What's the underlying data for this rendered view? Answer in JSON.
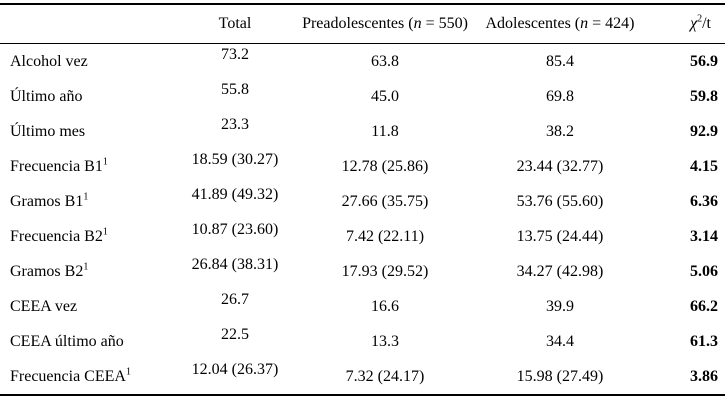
{
  "table": {
    "header": {
      "total": "Total",
      "pre_prefix": "Preadolescentes (",
      "pre_n": "n",
      "pre_suffix": " = 550)",
      "ado_prefix": "Adolescentes (",
      "ado_n": "n",
      "ado_suffix": " = 424)",
      "stat_chi": "χ",
      "stat_sup": "2",
      "stat_suffix": "/t"
    },
    "rows": [
      {
        "label": "Alcohol vez",
        "sup": "",
        "total": "73.2",
        "pre": "63.8",
        "ado": "85.4",
        "stat": "56.9"
      },
      {
        "label": "Último año",
        "sup": "",
        "total": "55.8",
        "pre": "45.0",
        "ado": "69.8",
        "stat": "59.8"
      },
      {
        "label": "Último mes",
        "sup": "",
        "total": "23.3",
        "pre": "11.8",
        "ado": "38.2",
        "stat": "92.9"
      },
      {
        "label": "Frecuencia B1",
        "sup": "1",
        "total": "18.59 (30.27)",
        "pre": "12.78 (25.86)",
        "ado": "23.44 (32.77)",
        "stat": "4.15"
      },
      {
        "label": "Gramos B1",
        "sup": "1",
        "total": "41.89 (49.32)",
        "pre": "27.66 (35.75)",
        "ado": "53.76 (55.60)",
        "stat": "6.36"
      },
      {
        "label": "Frecuencia B2",
        "sup": "1",
        "total": "10.87 (23.60)",
        "pre": "7.42 (22.11)",
        "ado": "13.75 (24.44)",
        "stat": "3.14"
      },
      {
        "label": "Gramos B2",
        "sup": "1",
        "total": "26.84 (38.31)",
        "pre": "17.93 (29.52)",
        "ado": "34.27 (42.98)",
        "stat": "5.06"
      },
      {
        "label": "CEEA vez",
        "sup": "",
        "total": "26.7",
        "pre": "16.6",
        "ado": "39.9",
        "stat": "66.2"
      },
      {
        "label": "CEEA último año",
        "sup": "",
        "total": "22.5",
        "pre": "13.3",
        "ado": "34.4",
        "stat": "61.3"
      },
      {
        "label": "Frecuencia CEEA",
        "sup": "1",
        "total": "12.04 (26.37)",
        "pre": "7.32 (24.17)",
        "ado": "15.98 (27.49)",
        "stat": "3.86"
      }
    ]
  }
}
